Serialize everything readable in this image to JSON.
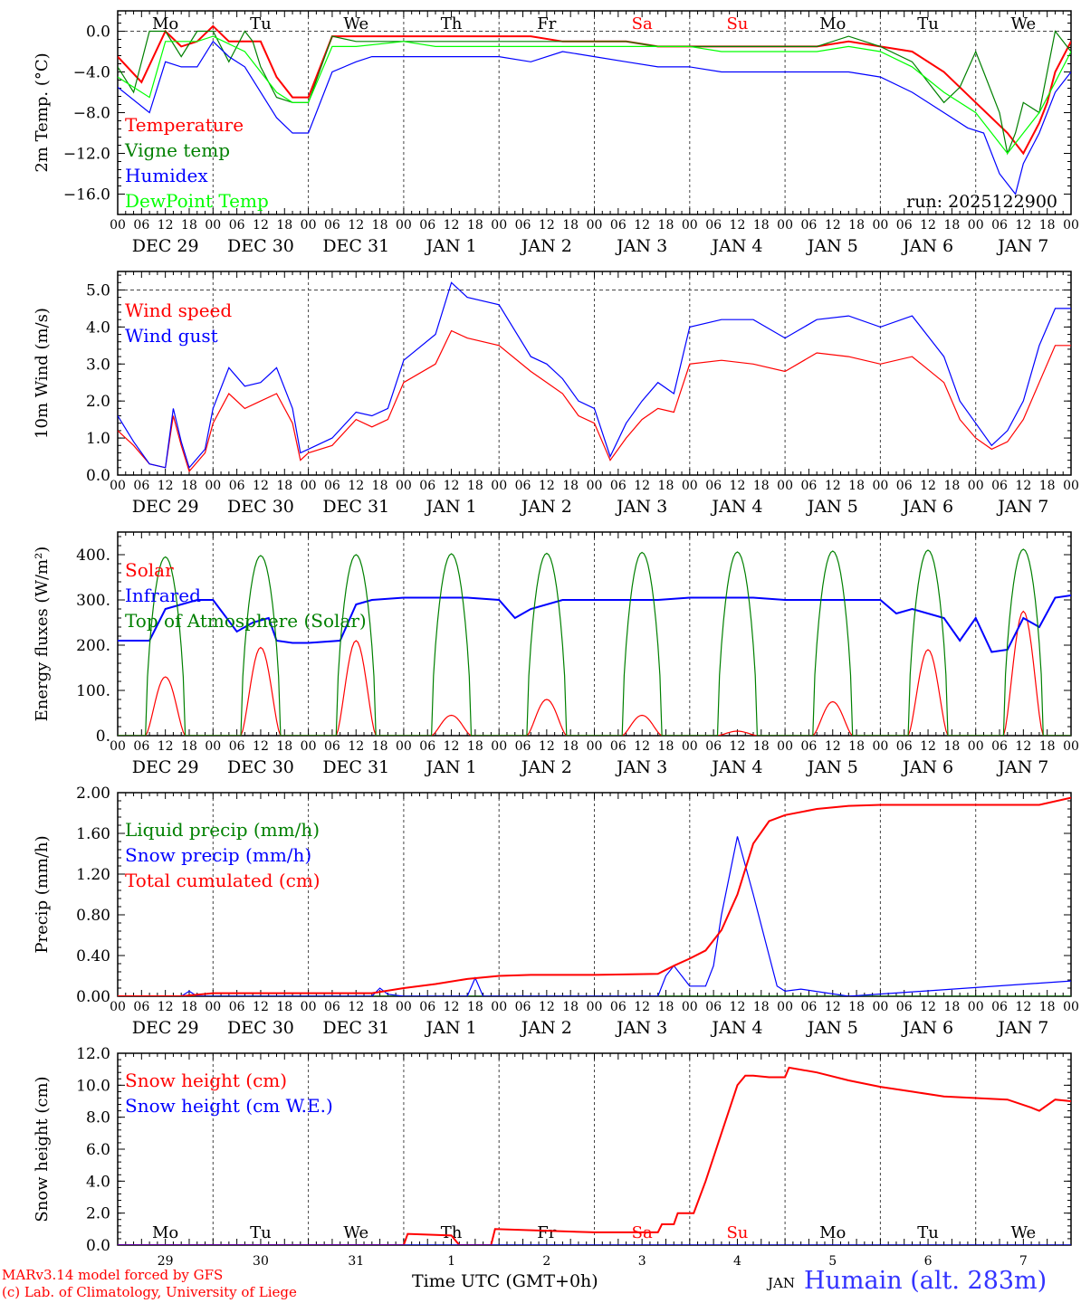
{
  "station": "Humain (alt. 283m)",
  "credits": [
    "MARv3.14 model forced by GFS",
    "(c) Lab. of Climatology, University of Liege"
  ],
  "x_axis_title": "Time UTC (GMT+0h)",
  "month_label": "JAN",
  "colors": {
    "red": "#ff0000",
    "green": "#008000",
    "blue": "#0000ff",
    "light_green": "#00ff00",
    "gray": "#888888"
  },
  "days": [
    {
      "weekday": "Mo",
      "date": "DEC 29",
      "num": "29",
      "weekend": false
    },
    {
      "weekday": "Tu",
      "date": "DEC 30",
      "num": "30",
      "weekend": false
    },
    {
      "weekday": "We",
      "date": "DEC 31",
      "num": "31",
      "weekend": false
    },
    {
      "weekday": "Th",
      "date": "JAN  1",
      "num": "1",
      "weekend": false
    },
    {
      "weekday": "Fr",
      "date": "JAN  2",
      "num": "2",
      "weekend": false
    },
    {
      "weekday": "Sa",
      "date": "JAN  3",
      "num": "3",
      "weekend": true
    },
    {
      "weekday": "Su",
      "date": "JAN  4",
      "num": "4",
      "weekend": true
    },
    {
      "weekday": "Mo",
      "date": "JAN  5",
      "num": "5",
      "weekend": false
    },
    {
      "weekday": "Tu",
      "date": "JAN  6",
      "num": "6",
      "weekend": false
    },
    {
      "weekday": "We",
      "date": "JAN  7",
      "num": "7",
      "weekend": false
    }
  ],
  "hour_labels": [
    "00",
    "06",
    "12",
    "18"
  ],
  "chart_data": [
    {
      "type": "line",
      "id": "temp",
      "title": "",
      "ylabel": "2m Temp. (°C)",
      "ylim": [
        -18,
        2
      ],
      "yticks": [
        -16.0,
        -12.0,
        -8.0,
        -4.0,
        0.0
      ],
      "ytick_labels": [
        "−16.0",
        "−12.0",
        "−8.0",
        "−4.0",
        "0.0"
      ],
      "ref_line": 0.0,
      "xunit": "hours since DEC 29 00 UTC",
      "xlim": [
        0,
        240
      ],
      "run_label": "run: 2025122900",
      "series": [
        {
          "name": "Temperature",
          "color": "#ff0000",
          "x": [
            0,
            6,
            12,
            16,
            20,
            24,
            28,
            32,
            36,
            40,
            44,
            48,
            54,
            60,
            64,
            68,
            72,
            80,
            88,
            96,
            104,
            112,
            120,
            128,
            136,
            144,
            152,
            160,
            168,
            176,
            184,
            192,
            200,
            208,
            216,
            224,
            228,
            232,
            234,
            236,
            240
          ],
          "y": [
            -2.5,
            -5,
            0,
            -1.5,
            -1,
            0.5,
            -1,
            -1,
            -1,
            -4.5,
            -6.5,
            -6.5,
            -0.5,
            -0.5,
            -0.5,
            -0.5,
            -0.5,
            -0.5,
            -0.5,
            -0.5,
            -0.5,
            -1,
            -1,
            -1,
            -1.5,
            -1.5,
            -1.5,
            -1.5,
            -1.5,
            -1.5,
            -1,
            -1.5,
            -2,
            -4,
            -7,
            -10,
            -12,
            -9,
            -7,
            -4,
            -1
          ]
        },
        {
          "name": "Vigne temp",
          "color": "#008000",
          "x": [
            0,
            4,
            8,
            12,
            16,
            20,
            24,
            28,
            32,
            34,
            36,
            40,
            44,
            48,
            54,
            60,
            64,
            68,
            72,
            80,
            88,
            96,
            104,
            112,
            120,
            128,
            136,
            144,
            152,
            160,
            168,
            176,
            184,
            192,
            200,
            208,
            212,
            216,
            218,
            222,
            224,
            226,
            228,
            232,
            236,
            240
          ],
          "y": [
            -3.5,
            -6,
            0,
            0,
            -2.5,
            0,
            0,
            -3,
            0,
            -1,
            -3.5,
            -6.5,
            -7,
            -7,
            -0.5,
            -1,
            -1,
            -1,
            -1,
            -1,
            -1,
            -1,
            -1,
            -1,
            -1,
            -1,
            -1.5,
            -1.5,
            -1.5,
            -1.5,
            -1.5,
            -1.5,
            -0.5,
            -1.5,
            -3,
            -7,
            -5.5,
            -2,
            -4,
            -8,
            -12,
            -10,
            -7,
            -8,
            0,
            -2
          ]
        },
        {
          "name": "Humidex",
          "color": "#0000ff",
          "x": [
            0,
            8,
            12,
            16,
            20,
            24,
            28,
            32,
            40,
            44,
            48,
            54,
            60,
            64,
            72,
            80,
            88,
            96,
            104,
            112,
            120,
            128,
            136,
            144,
            152,
            160,
            168,
            176,
            184,
            192,
            200,
            208,
            214,
            218,
            222,
            226,
            228,
            232,
            236,
            240
          ],
          "y": [
            -5.5,
            -8,
            -3,
            -3.5,
            -3.5,
            -1,
            -2.5,
            -3.5,
            -8.5,
            -10,
            -10,
            -4,
            -3,
            -2.5,
            -2.5,
            -2.5,
            -2.5,
            -2.5,
            -3,
            -2,
            -2.5,
            -3,
            -3.5,
            -3.5,
            -4,
            -4,
            -4,
            -4,
            -4,
            -4.5,
            -6,
            -8,
            -9.5,
            -10,
            -14,
            -16,
            -13,
            -10,
            -6,
            -4
          ]
        },
        {
          "name": "DewPoint Temp",
          "color": "#00ff00",
          "x": [
            0,
            8,
            12,
            20,
            24,
            32,
            40,
            44,
            48,
            54,
            60,
            72,
            80,
            88,
            96,
            104,
            112,
            120,
            128,
            136,
            144,
            152,
            160,
            168,
            176,
            184,
            192,
            200,
            208,
            216,
            220,
            224,
            228,
            232,
            236,
            240
          ],
          "y": [
            -4.5,
            -6.5,
            -1,
            -1,
            -0.5,
            -2,
            -6,
            -7,
            -7,
            -1.5,
            -1.5,
            -1,
            -1.5,
            -1.5,
            -1.5,
            -1.5,
            -1.5,
            -1.5,
            -1.5,
            -1.5,
            -1.5,
            -2,
            -2,
            -2,
            -2,
            -1.5,
            -2,
            -3.5,
            -6,
            -8,
            -10,
            -12,
            -10,
            -8,
            -5,
            -2
          ]
        }
      ]
    },
    {
      "type": "line",
      "id": "wind",
      "ylabel": "10m Wind (m/s)",
      "ylim": [
        0,
        5.5
      ],
      "yticks": [
        0,
        1,
        2,
        3,
        4,
        5
      ],
      "ytick_labels": [
        "0.0",
        "1.0",
        "2.0",
        "3.0",
        "4.0",
        "5.0"
      ],
      "ref_line": 5.0,
      "xlim": [
        0,
        240
      ],
      "series": [
        {
          "name": "Wind speed",
          "color": "#ff0000",
          "x": [
            0,
            4,
            8,
            12,
            14,
            16,
            18,
            22,
            24,
            28,
            32,
            36,
            40,
            44,
            46,
            48,
            54,
            60,
            64,
            68,
            72,
            80,
            84,
            88,
            96,
            104,
            108,
            112,
            116,
            120,
            124,
            128,
            132,
            136,
            140,
            144,
            152,
            160,
            168,
            176,
            184,
            192,
            200,
            208,
            212,
            216,
            220,
            224,
            228,
            232,
            236,
            240
          ],
          "y": [
            1.2,
            0.8,
            0.3,
            0.2,
            1.6,
            0.8,
            0.1,
            0.6,
            1.4,
            2.2,
            1.8,
            2.0,
            2.2,
            1.4,
            0.4,
            0.6,
            0.8,
            1.5,
            1.3,
            1.5,
            2.5,
            3.0,
            3.9,
            3.7,
            3.5,
            2.8,
            2.5,
            2.2,
            1.6,
            1.4,
            0.4,
            1.0,
            1.5,
            1.8,
            1.7,
            3.0,
            3.1,
            3.0,
            2.8,
            3.3,
            3.2,
            3.0,
            3.2,
            2.5,
            1.5,
            1.0,
            0.7,
            0.9,
            1.5,
            2.5,
            3.5,
            3.5
          ]
        },
        {
          "name": "Wind gust",
          "color": "#0000ff",
          "x": [
            0,
            4,
            8,
            12,
            14,
            16,
            18,
            22,
            24,
            28,
            32,
            36,
            40,
            44,
            46,
            48,
            54,
            60,
            64,
            68,
            72,
            80,
            84,
            88,
            96,
            104,
            108,
            112,
            116,
            120,
            124,
            128,
            132,
            136,
            140,
            144,
            152,
            160,
            168,
            176,
            184,
            192,
            200,
            208,
            212,
            216,
            220,
            224,
            228,
            232,
            236,
            240
          ],
          "y": [
            1.6,
            0.9,
            0.3,
            0.2,
            1.8,
            0.9,
            0.2,
            0.7,
            1.8,
            2.9,
            2.4,
            2.5,
            2.9,
            1.8,
            0.6,
            0.7,
            1.0,
            1.7,
            1.6,
            1.8,
            3.1,
            3.8,
            5.2,
            4.8,
            4.6,
            3.2,
            3.0,
            2.6,
            2.0,
            1.8,
            0.5,
            1.4,
            2.0,
            2.5,
            2.2,
            4.0,
            4.2,
            4.2,
            3.7,
            4.2,
            4.3,
            4.0,
            4.3,
            3.2,
            2.0,
            1.4,
            0.8,
            1.2,
            2.0,
            3.5,
            4.5,
            4.5
          ]
        }
      ]
    },
    {
      "type": "line",
      "id": "energy",
      "ylabel": "Energy fluxes (W/m²)",
      "ylim": [
        0,
        450
      ],
      "yticks": [
        0,
        100,
        200,
        300,
        400
      ],
      "ytick_labels": [
        "0.",
        "100.",
        "200.",
        "300.",
        "400."
      ],
      "xlim": [
        0,
        240
      ],
      "series": [
        {
          "name": "Solar",
          "color": "#ff0000",
          "daily_peaks": [
            130,
            195,
            210,
            45,
            80,
            45,
            10,
            75,
            190,
            275
          ]
        },
        {
          "name": "Infrared",
          "color": "#0000ff",
          "x": [
            0,
            8,
            12,
            16,
            20,
            24,
            30,
            34,
            38,
            40,
            44,
            48,
            56,
            60,
            64,
            72,
            80,
            88,
            96,
            100,
            104,
            112,
            120,
            128,
            136,
            144,
            152,
            160,
            168,
            176,
            184,
            192,
            196,
            200,
            208,
            212,
            216,
            220,
            224,
            228,
            232,
            236,
            240
          ],
          "y": [
            210,
            210,
            280,
            290,
            300,
            300,
            230,
            250,
            260,
            210,
            205,
            205,
            210,
            290,
            300,
            305,
            305,
            305,
            300,
            260,
            280,
            300,
            300,
            300,
            300,
            305,
            305,
            305,
            300,
            300,
            300,
            300,
            270,
            280,
            260,
            210,
            260,
            185,
            190,
            260,
            240,
            305,
            310
          ]
        },
        {
          "name": "Top of Atmosphere (Solar)",
          "color": "#008000",
          "daily_peaks": [
            395,
            398,
            400,
            402,
            403,
            405,
            406,
            408,
            410,
            412
          ]
        }
      ]
    },
    {
      "type": "line",
      "id": "precip",
      "ylabel": "Precip (mm/h)",
      "ylim": [
        0,
        2.0
      ],
      "yticks": [
        0,
        0.4,
        0.8,
        1.2,
        1.6,
        2.0
      ],
      "ytick_labels": [
        "0.00",
        "0.40",
        "0.80",
        "1.20",
        "1.60",
        "2.00"
      ],
      "xlim": [
        0,
        240
      ],
      "series": [
        {
          "name": "Liquid precip (mm/h)",
          "color": "#008000",
          "x": [
            0,
            240
          ],
          "y": [
            0,
            0
          ]
        },
        {
          "name": "Snow precip (mm/h)",
          "color": "#0000ff",
          "x": [
            0,
            16,
            18,
            20,
            24,
            64,
            66,
            68,
            72,
            88,
            90,
            92,
            96,
            136,
            138,
            140,
            144,
            148,
            150,
            152,
            156,
            160,
            164,
            166,
            168,
            172,
            184,
            240
          ],
          "y": [
            0,
            0,
            0.05,
            0,
            0,
            0,
            0.08,
            0.02,
            0,
            0,
            0.18,
            0,
            0,
            0,
            0.2,
            0.3,
            0.1,
            0.1,
            0.3,
            0.8,
            1.57,
            1.0,
            0.4,
            0.1,
            0.05,
            0.07,
            0,
            0.15
          ]
        },
        {
          "name": "Total cumulated (cm)",
          "color": "#ff0000",
          "x": [
            0,
            16,
            24,
            64,
            72,
            80,
            88,
            96,
            104,
            120,
            136,
            140,
            144,
            148,
            152,
            156,
            160,
            164,
            168,
            176,
            184,
            192,
            232,
            240
          ],
          "y": [
            0,
            0,
            0.03,
            0.03,
            0.08,
            0.12,
            0.17,
            0.2,
            0.21,
            0.21,
            0.22,
            0.3,
            0.37,
            0.45,
            0.65,
            1.0,
            1.5,
            1.72,
            1.78,
            1.84,
            1.87,
            1.88,
            1.88,
            1.95
          ]
        }
      ]
    },
    {
      "type": "line",
      "id": "snow",
      "ylabel": "Snow height (cm)",
      "ylim": [
        0,
        12.0
      ],
      "yticks": [
        0,
        2,
        4,
        6,
        8,
        10,
        12
      ],
      "ytick_labels": [
        "0.0",
        "2.0",
        "4.0",
        "6.0",
        "8.0",
        "10.0",
        "12.0"
      ],
      "xlim": [
        0,
        240
      ],
      "series": [
        {
          "name": "Snow height (cm)",
          "color": "#ff0000",
          "x": [
            0,
            72,
            73,
            84,
            86,
            88,
            94,
            95,
            120,
            136,
            137,
            140,
            141,
            144,
            145,
            148,
            152,
            154,
            156,
            158,
            160,
            164,
            168,
            169,
            176,
            184,
            192,
            200,
            208,
            216,
            224,
            230,
            232,
            236,
            240
          ],
          "y": [
            0,
            0,
            0.7,
            0.6,
            0,
            0,
            0,
            1.0,
            0.8,
            0.8,
            1.3,
            1.3,
            2.0,
            2.0,
            2.0,
            4.0,
            7.0,
            8.5,
            10.0,
            10.6,
            10.6,
            10.5,
            10.5,
            11.1,
            10.8,
            10.3,
            9.9,
            9.6,
            9.3,
            9.2,
            9.1,
            8.6,
            8.4,
            9.1,
            9.0
          ]
        },
        {
          "name": "Snow height (cm W.E.)",
          "color": "#0000ff",
          "x": [
            0,
            240
          ],
          "y": [
            0,
            0
          ]
        }
      ]
    }
  ]
}
